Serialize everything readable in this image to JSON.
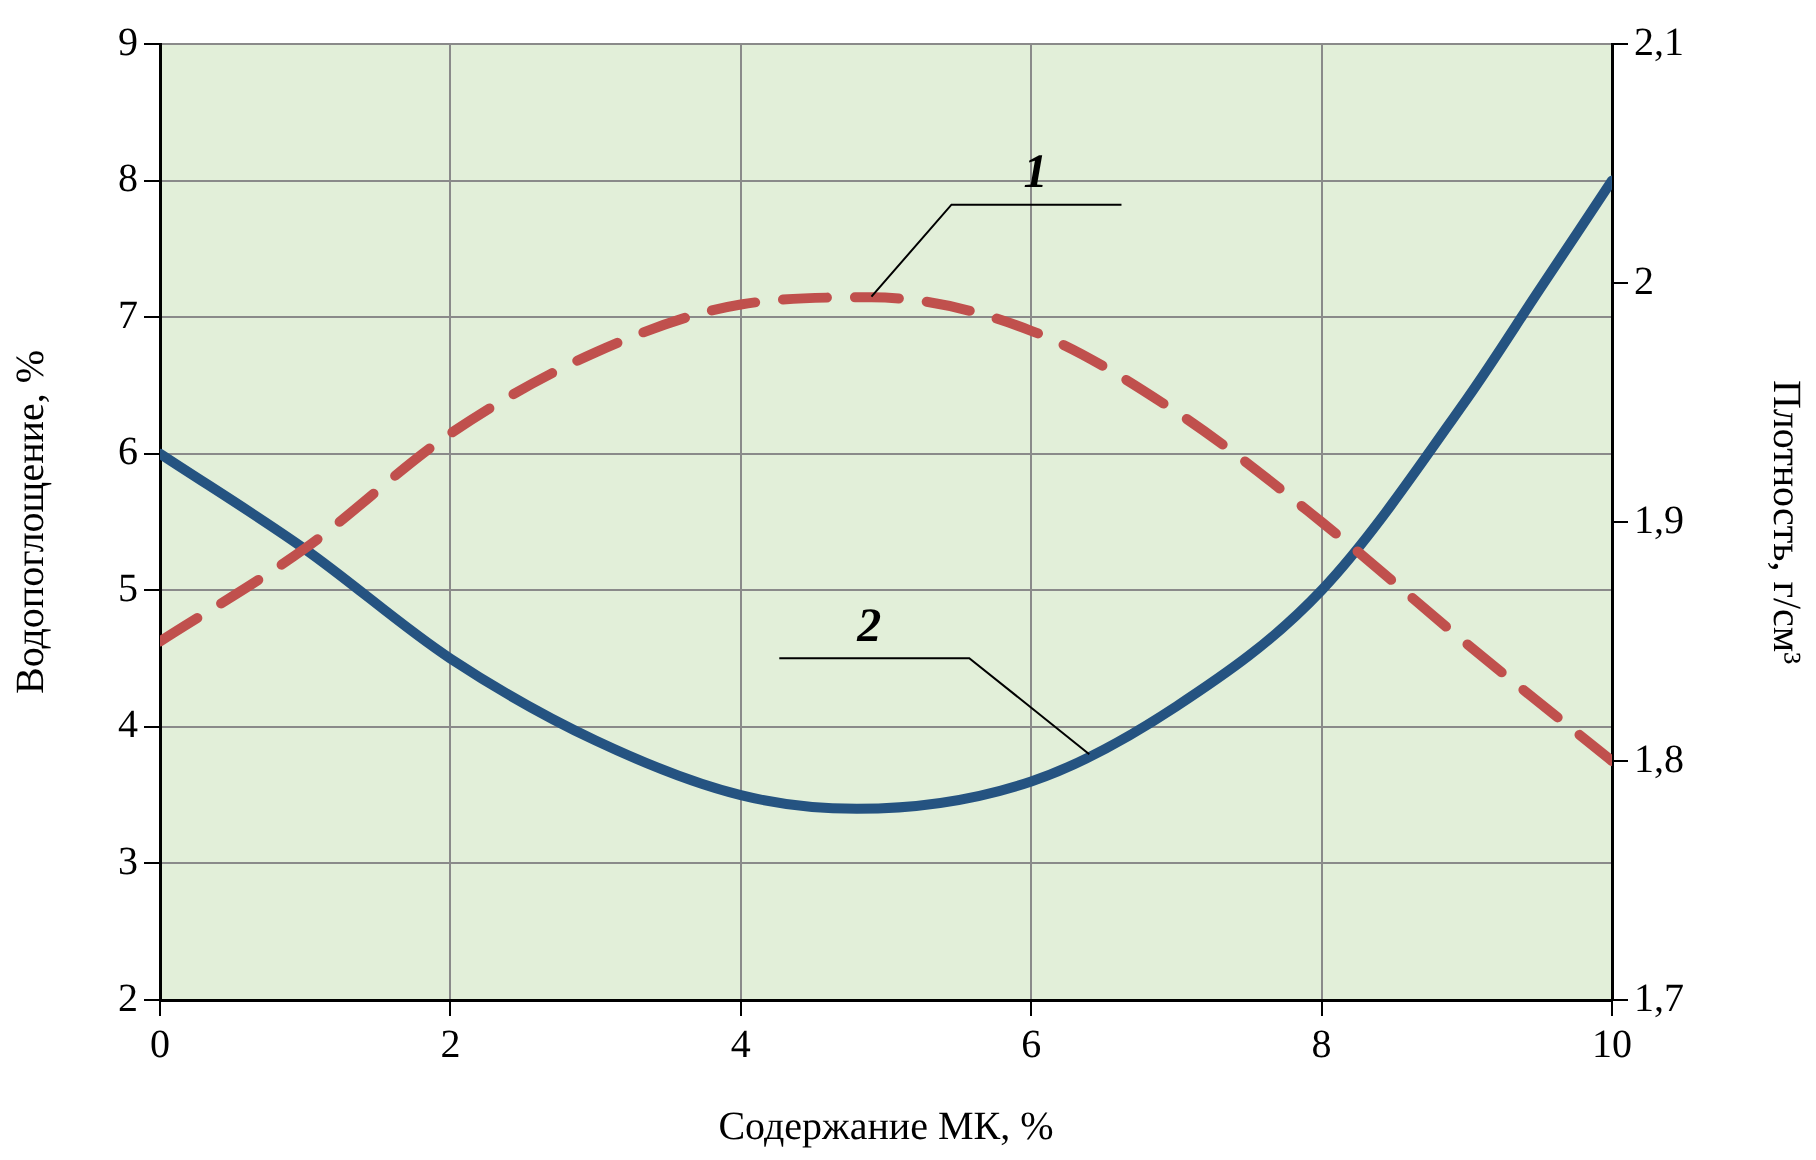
{
  "chart_data": {
    "type": "line",
    "xlabel": "Содержание МК, %",
    "ylabel": "Водопоглощение, %",
    "y2label": "Плотность, г/см³",
    "series": [
      {
        "color": "#c0504d",
        "line_style": "dashed",
        "axis": "y2",
        "x": [
          0,
          1,
          2,
          3,
          4,
          4.9,
          6,
          7,
          8,
          9,
          10
        ],
        "values": [
          1.85,
          1.889,
          1.937,
          1.971,
          1.991,
          1.994,
          1.98,
          1.946,
          1.9,
          1.849,
          1.8
        ]
      },
      {
        "color": "#255381",
        "line_style": "solid",
        "x": [
          0,
          1,
          2,
          3,
          4,
          4.8,
          6,
          7,
          8,
          9,
          9.5,
          10
        ],
        "values": [
          6.0,
          5.3,
          4.5,
          3.9,
          3.5,
          3.4,
          3.6,
          4.15,
          5.0,
          6.4,
          7.2,
          8.0
        ]
      }
    ],
    "xlim": [
      0,
      10
    ],
    "xticks": [
      0,
      2,
      4,
      6,
      8,
      10
    ],
    "ylim": [
      2,
      9
    ],
    "yticks": [
      2,
      3,
      4,
      5,
      6,
      7,
      8,
      9
    ],
    "y2lim": [
      1.7,
      2.1
    ],
    "y2ticks": [
      {
        "value": 1.7,
        "label": "1,7"
      },
      {
        "value": 1.8,
        "label": "1,8"
      },
      {
        "value": 1.9,
        "label": "1,9"
      },
      {
        "value": 2,
        "label": "2"
      },
      {
        "value": 2.1,
        "label": "2,1"
      }
    ],
    "annotations": [
      {
        "text": "1",
        "x": 4.9,
        "y": 7.15
      },
      {
        "text": "2",
        "x": 6.4,
        "y": 3.8
      }
    ],
    "grid": true,
    "legend": false,
    "marker": "none"
  }
}
